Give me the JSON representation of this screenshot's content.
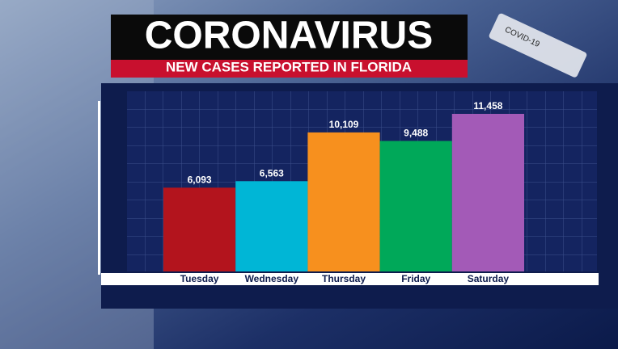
{
  "chart_data": {
    "type": "bar",
    "title": "CORONAVIRUS",
    "subtitle": "NEW CASES REPORTED IN FLORIDA",
    "background_label": "COVID-19",
    "categories": [
      "Tuesday",
      "Wednesday",
      "Thursday",
      "Friday",
      "Saturday"
    ],
    "values": [
      6093,
      6563,
      10109,
      9488,
      11458
    ],
    "value_labels": [
      "6,093",
      "6,563",
      "10,109",
      "9,488",
      "11,458"
    ],
    "colors": [
      "#b3141d",
      "#00b6d6",
      "#f7901e",
      "#00a859",
      "#a35ab7"
    ],
    "ylim": [
      0,
      13100
    ],
    "grid": true
  }
}
